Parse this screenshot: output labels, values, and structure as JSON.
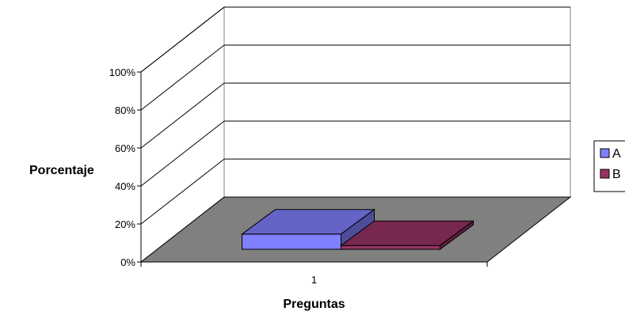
{
  "chart_data": {
    "type": "bar",
    "categories": [
      "1"
    ],
    "series": [
      {
        "name": "A",
        "values": [
          8
        ],
        "color": "#8080ff"
      },
      {
        "name": "B",
        "values": [
          2
        ],
        "color": "#993366"
      }
    ],
    "title": "",
    "xlabel": "Preguntas",
    "ylabel": "Porcentaje",
    "ylim": [
      0,
      100
    ],
    "yticks": [
      "0%",
      "20%",
      "40%",
      "60%",
      "80%",
      "100%"
    ],
    "tick_values": [
      0,
      20,
      40,
      60,
      80,
      100
    ],
    "grid": true,
    "legend_position": "right",
    "floor_color": "#808080"
  }
}
